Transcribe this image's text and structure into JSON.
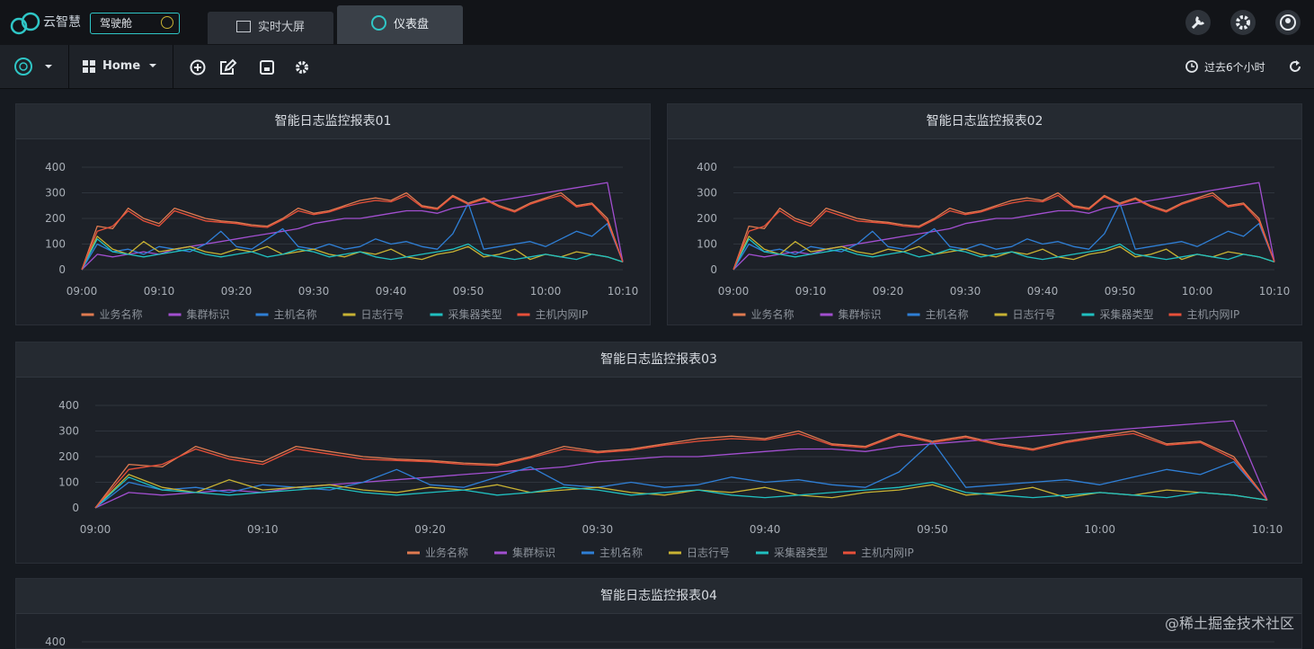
{
  "header": {
    "logo": "云智慧",
    "cockpit": "驾驶舱",
    "tabs": [
      "实时大屏",
      "仪表盘"
    ]
  },
  "toolbar": {
    "home": "Home",
    "time_range": "过去6个小时"
  },
  "watermark": "@稀土掘金技术社区",
  "chart_data": [
    {
      "type": "line",
      "title": "智能日志监控报表01",
      "x": [
        "09:00",
        "09:02",
        "09:04",
        "09:06",
        "09:08",
        "09:10",
        "09:12",
        "09:14",
        "09:16",
        "09:18",
        "09:20",
        "09:22",
        "09:24",
        "09:26",
        "09:28",
        "09:30",
        "09:32",
        "09:34",
        "09:36",
        "09:38",
        "09:40",
        "09:42",
        "09:44",
        "09:46",
        "09:48",
        "09:50",
        "09:52",
        "09:54",
        "09:56",
        "09:58",
        "10:00",
        "10:02",
        "10:04",
        "10:06",
        "10:08",
        "10:10"
      ],
      "xticks": [
        "09:00",
        "09:10",
        "09:20",
        "09:30",
        "09:40",
        "09:50",
        "10:00",
        "10:10"
      ],
      "ylim": [
        0,
        400
      ],
      "yticks": [
        0,
        100,
        200,
        300,
        400
      ],
      "grid": true,
      "series": [
        {
          "name": "业务名称",
          "color": "#e07a50",
          "values": [
            0,
            170,
            160,
            240,
            200,
            180,
            240,
            220,
            200,
            190,
            185,
            175,
            170,
            200,
            240,
            220,
            230,
            250,
            270,
            280,
            270,
            300,
            250,
            240,
            290,
            260,
            280,
            250,
            230,
            260,
            280,
            300,
            250,
            260,
            200,
            30
          ]
        },
        {
          "name": "集群标识",
          "color": "#a24fd0",
          "values": [
            0,
            60,
            50,
            60,
            70,
            60,
            80,
            90,
            100,
            110,
            120,
            130,
            140,
            150,
            160,
            180,
            190,
            200,
            200,
            210,
            220,
            230,
            230,
            220,
            240,
            250,
            260,
            270,
            280,
            290,
            300,
            310,
            320,
            330,
            340,
            30
          ]
        },
        {
          "name": "主机名称",
          "color": "#2f7fd6",
          "values": [
            0,
            100,
            70,
            80,
            60,
            90,
            80,
            70,
            100,
            150,
            90,
            80,
            120,
            160,
            90,
            80,
            100,
            80,
            90,
            120,
            100,
            110,
            90,
            80,
            140,
            260,
            80,
            90,
            100,
            110,
            90,
            120,
            150,
            130,
            180,
            30
          ]
        },
        {
          "name": "日志行号",
          "color": "#c8b233",
          "values": [
            0,
            130,
            80,
            60,
            110,
            70,
            80,
            90,
            70,
            60,
            80,
            70,
            90,
            60,
            70,
            80,
            60,
            50,
            70,
            60,
            80,
            50,
            40,
            60,
            70,
            90,
            50,
            60,
            80,
            40,
            60,
            50,
            70,
            60,
            50,
            30
          ]
        },
        {
          "name": "采集器类型",
          "color": "#20c0c0",
          "values": [
            0,
            120,
            70,
            60,
            50,
            60,
            70,
            80,
            60,
            50,
            60,
            70,
            50,
            60,
            80,
            70,
            50,
            60,
            70,
            50,
            40,
            50,
            60,
            70,
            80,
            100,
            60,
            50,
            40,
            50,
            60,
            50,
            40,
            60,
            50,
            30
          ]
        },
        {
          "name": "主机内网IP",
          "color": "#e8503a",
          "values": [
            0,
            150,
            170,
            230,
            190,
            170,
            230,
            210,
            190,
            185,
            180,
            170,
            165,
            195,
            230,
            215,
            225,
            245,
            260,
            270,
            265,
            290,
            245,
            235,
            285,
            255,
            275,
            245,
            225,
            255,
            275,
            290,
            245,
            255,
            190,
            30
          ]
        }
      ]
    },
    {
      "type": "line",
      "title": "智能日志监控报表02",
      "x": [
        "09:00",
        "09:02",
        "09:04",
        "09:06",
        "09:08",
        "09:10",
        "09:12",
        "09:14",
        "09:16",
        "09:18",
        "09:20",
        "09:22",
        "09:24",
        "09:26",
        "09:28",
        "09:30",
        "09:32",
        "09:34",
        "09:36",
        "09:38",
        "09:40",
        "09:42",
        "09:44",
        "09:46",
        "09:48",
        "09:50",
        "09:52",
        "09:54",
        "09:56",
        "09:58",
        "10:00",
        "10:02",
        "10:04",
        "10:06",
        "10:08",
        "10:10"
      ],
      "xticks": [
        "09:00",
        "09:10",
        "09:20",
        "09:30",
        "09:40",
        "09:50",
        "10:00",
        "10:10"
      ],
      "ylim": [
        0,
        400
      ],
      "yticks": [
        0,
        100,
        200,
        300,
        400
      ],
      "grid": true,
      "series": [
        {
          "name": "业务名称",
          "color": "#e07a50",
          "values": [
            0,
            170,
            160,
            240,
            200,
            180,
            240,
            220,
            200,
            190,
            185,
            175,
            170,
            200,
            240,
            220,
            230,
            250,
            270,
            280,
            270,
            300,
            250,
            240,
            290,
            260,
            280,
            250,
            230,
            260,
            280,
            300,
            250,
            260,
            200,
            30
          ]
        },
        {
          "name": "集群标识",
          "color": "#a24fd0",
          "values": [
            0,
            60,
            50,
            60,
            70,
            60,
            80,
            90,
            100,
            110,
            120,
            130,
            140,
            150,
            160,
            180,
            190,
            200,
            200,
            210,
            220,
            230,
            230,
            220,
            240,
            250,
            260,
            270,
            280,
            290,
            300,
            310,
            320,
            330,
            340,
            30
          ]
        },
        {
          "name": "主机名称",
          "color": "#2f7fd6",
          "values": [
            0,
            100,
            70,
            80,
            60,
            90,
            80,
            70,
            100,
            150,
            90,
            80,
            120,
            160,
            90,
            80,
            100,
            80,
            90,
            120,
            100,
            110,
            90,
            80,
            140,
            260,
            80,
            90,
            100,
            110,
            90,
            120,
            150,
            130,
            180,
            30
          ]
        },
        {
          "name": "日志行号",
          "color": "#c8b233",
          "values": [
            0,
            130,
            80,
            60,
            110,
            70,
            80,
            90,
            70,
            60,
            80,
            70,
            90,
            60,
            70,
            80,
            60,
            50,
            70,
            60,
            80,
            50,
            40,
            60,
            70,
            90,
            50,
            60,
            80,
            40,
            60,
            50,
            70,
            60,
            50,
            30
          ]
        },
        {
          "name": "采集器类型",
          "color": "#20c0c0",
          "values": [
            0,
            120,
            70,
            60,
            50,
            60,
            70,
            80,
            60,
            50,
            60,
            70,
            50,
            60,
            80,
            70,
            50,
            60,
            70,
            50,
            40,
            50,
            60,
            70,
            80,
            100,
            60,
            50,
            40,
            50,
            60,
            50,
            40,
            60,
            50,
            30
          ]
        },
        {
          "name": "主机内网IP",
          "color": "#e8503a",
          "values": [
            0,
            150,
            170,
            230,
            190,
            170,
            230,
            210,
            190,
            185,
            180,
            170,
            165,
            195,
            230,
            215,
            225,
            245,
            260,
            270,
            265,
            290,
            245,
            235,
            285,
            255,
            275,
            245,
            225,
            255,
            275,
            290,
            245,
            255,
            190,
            30
          ]
        }
      ]
    },
    {
      "type": "line",
      "title": "智能日志监控报表03",
      "x": [
        "09:00",
        "09:02",
        "09:04",
        "09:06",
        "09:08",
        "09:10",
        "09:12",
        "09:14",
        "09:16",
        "09:18",
        "09:20",
        "09:22",
        "09:24",
        "09:26",
        "09:28",
        "09:30",
        "09:32",
        "09:34",
        "09:36",
        "09:38",
        "09:40",
        "09:42",
        "09:44",
        "09:46",
        "09:48",
        "09:50",
        "09:52",
        "09:54",
        "09:56",
        "09:58",
        "10:00",
        "10:02",
        "10:04",
        "10:06",
        "10:08",
        "10:10"
      ],
      "xticks": [
        "09:00",
        "09:10",
        "09:20",
        "09:30",
        "09:40",
        "09:50",
        "10:00",
        "10:10"
      ],
      "ylim": [
        0,
        400
      ],
      "yticks": [
        0,
        100,
        200,
        300,
        400
      ],
      "grid": true,
      "series": [
        {
          "name": "业务名称",
          "color": "#e07a50",
          "values": [
            0,
            170,
            160,
            240,
            200,
            180,
            240,
            220,
            200,
            190,
            185,
            175,
            170,
            200,
            240,
            220,
            230,
            250,
            270,
            280,
            270,
            300,
            250,
            240,
            290,
            260,
            280,
            250,
            230,
            260,
            280,
            300,
            250,
            260,
            200,
            30
          ]
        },
        {
          "name": "集群标识",
          "color": "#a24fd0",
          "values": [
            0,
            60,
            50,
            60,
            70,
            60,
            80,
            90,
            100,
            110,
            120,
            130,
            140,
            150,
            160,
            180,
            190,
            200,
            200,
            210,
            220,
            230,
            230,
            220,
            240,
            250,
            260,
            270,
            280,
            290,
            300,
            310,
            320,
            330,
            340,
            30
          ]
        },
        {
          "name": "主机名称",
          "color": "#2f7fd6",
          "values": [
            0,
            100,
            70,
            80,
            60,
            90,
            80,
            70,
            100,
            150,
            90,
            80,
            120,
            160,
            90,
            80,
            100,
            80,
            90,
            120,
            100,
            110,
            90,
            80,
            140,
            260,
            80,
            90,
            100,
            110,
            90,
            120,
            150,
            130,
            180,
            30
          ]
        },
        {
          "name": "日志行号",
          "color": "#c8b233",
          "values": [
            0,
            130,
            80,
            60,
            110,
            70,
            80,
            90,
            70,
            60,
            80,
            70,
            90,
            60,
            70,
            80,
            60,
            50,
            70,
            60,
            80,
            50,
            40,
            60,
            70,
            90,
            50,
            60,
            80,
            40,
            60,
            50,
            70,
            60,
            50,
            30
          ]
        },
        {
          "name": "采集器类型",
          "color": "#20c0c0",
          "values": [
            0,
            120,
            70,
            60,
            50,
            60,
            70,
            80,
            60,
            50,
            60,
            70,
            50,
            60,
            80,
            70,
            50,
            60,
            70,
            50,
            40,
            50,
            60,
            70,
            80,
            100,
            60,
            50,
            40,
            50,
            60,
            50,
            40,
            60,
            50,
            30
          ]
        },
        {
          "name": "主机内网IP",
          "color": "#e8503a",
          "values": [
            0,
            150,
            170,
            230,
            190,
            170,
            230,
            210,
            190,
            185,
            180,
            170,
            165,
            195,
            230,
            215,
            225,
            245,
            260,
            270,
            265,
            290,
            245,
            235,
            285,
            255,
            275,
            245,
            225,
            255,
            275,
            290,
            245,
            255,
            190,
            30
          ]
        }
      ]
    },
    {
      "type": "line",
      "title": "智能日志监控报表04",
      "ylim": [
        0,
        400
      ],
      "yticks": [
        400
      ],
      "grid": true
    }
  ]
}
